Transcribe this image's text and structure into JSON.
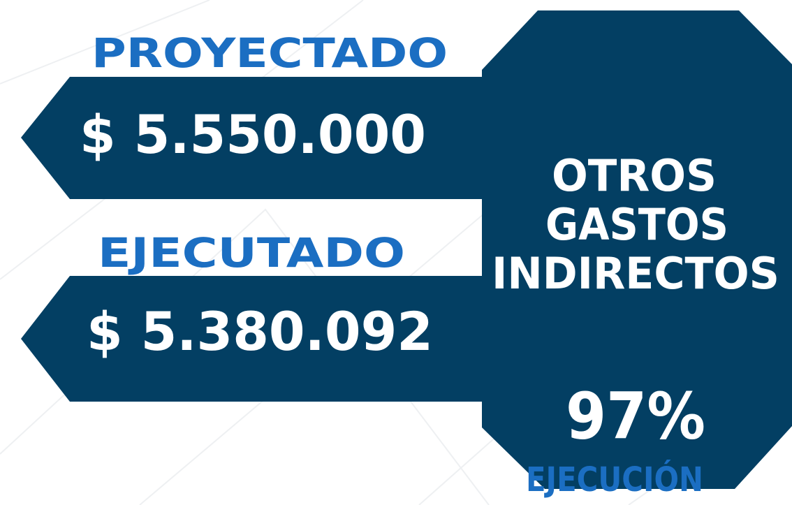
{
  "projected": {
    "label": "PROYECTADO",
    "value": "$ 5.550.000"
  },
  "executed": {
    "label": "EJECUTADO",
    "value": "$ 5.380.092"
  },
  "category": {
    "lines": [
      "OTROS",
      "GASTOS",
      "INDIRECTOS"
    ]
  },
  "execution": {
    "percent": "97%",
    "label": "EJECUCIÓN"
  }
}
